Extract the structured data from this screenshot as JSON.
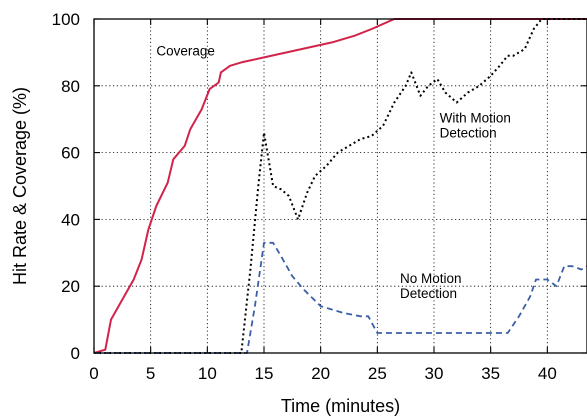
{
  "chart_data": {
    "type": "line",
    "xlabel": "Time (minutes)",
    "ylabel": "Hit Rate & Coverage (%)",
    "xlim": [
      0,
      43.5
    ],
    "ylim": [
      0,
      100
    ],
    "xticks": [
      "0",
      "5",
      "10",
      "15",
      "20",
      "25",
      "30",
      "35",
      "40"
    ],
    "yticks": [
      "0",
      "20",
      "40",
      "60",
      "80",
      "100"
    ],
    "grid": true,
    "legend": "none",
    "series": [
      {
        "name": "Coverage",
        "color": "#d2234a",
        "style": "solid",
        "label_lines": [
          "Coverage"
        ],
        "x": [
          0,
          1,
          1.5,
          2.5,
          3.5,
          4.2,
          4.8,
          5.5,
          6.5,
          7,
          8,
          8.5,
          9.5,
          10.2,
          11,
          11.2,
          12,
          13,
          15,
          17,
          19,
          21,
          23,
          24.5,
          26.5,
          28,
          32,
          36,
          40,
          43.5
        ],
        "y": [
          0,
          1,
          10,
          16,
          22,
          28,
          37,
          44,
          51,
          58,
          62,
          67,
          73,
          79,
          81,
          84,
          86,
          87,
          88.5,
          90,
          91.5,
          93,
          95,
          97,
          100,
          100,
          100,
          100,
          100,
          100
        ]
      },
      {
        "name": "With Motion Detection",
        "color": "#000000",
        "style": "dotted",
        "label_lines": [
          "With Motion",
          "Detection"
        ],
        "x": [
          0,
          13,
          13.8,
          14.5,
          15,
          15.8,
          16.5,
          17.2,
          18,
          18.8,
          19.5,
          20.5,
          21.5,
          22.5,
          23.5,
          24.5,
          25.5,
          26.5,
          27.5,
          28,
          28.8,
          29.5,
          30.3,
          31,
          32,
          33,
          34,
          35,
          35.8,
          36.5,
          37,
          38,
          38.8,
          39.5,
          40.5,
          43.5
        ],
        "y": [
          0,
          0,
          25,
          50,
          66,
          50,
          49,
          47,
          40,
          48,
          53,
          56,
          60,
          62,
          64,
          65,
          68,
          75,
          80,
          84,
          77,
          80,
          82,
          78,
          75,
          78,
          80,
          83,
          86,
          89,
          89,
          91,
          97,
          100,
          100,
          100
        ]
      },
      {
        "name": "No Motion Detection",
        "color": "#3a5fa8",
        "style": "dashed",
        "label_lines": [
          "No Motion",
          "Detection"
        ],
        "x": [
          0,
          13.5,
          14.2,
          15,
          15.8,
          16.5,
          17.5,
          18.5,
          20,
          22,
          23.5,
          24.2,
          25,
          26,
          28,
          30,
          32,
          34,
          36.5,
          37.5,
          38.5,
          39,
          40,
          40.8,
          41.5,
          42.2,
          43,
          43.5
        ],
        "y": [
          0,
          0,
          14,
          33,
          33,
          29,
          23,
          19,
          14,
          12,
          11,
          11,
          6,
          6,
          6,
          6,
          6,
          6,
          6,
          11,
          17,
          22,
          22,
          20,
          26,
          26,
          25,
          26
        ]
      }
    ]
  }
}
